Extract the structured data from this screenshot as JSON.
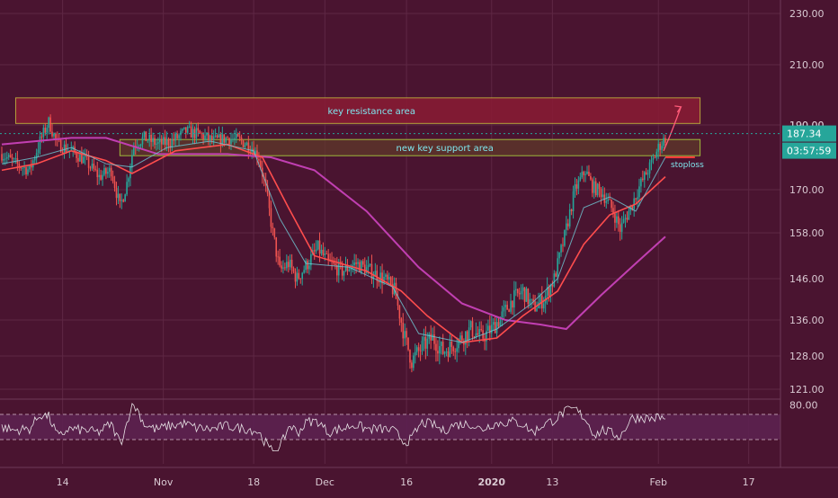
{
  "colors": {
    "background": "#4a1430",
    "grid": "#5e2744",
    "candle_up": "#26a69a",
    "candle_down": "#ef5350",
    "ma_fast": "#6fc9d6",
    "ma_mid": "#ff4d4d",
    "ma_slow": "#c13fb2",
    "resistance_fill": "#8a1b34",
    "resistance_stroke": "#b5a03b",
    "support_fill": "#5f3a2a",
    "support_stroke": "#9fb93b",
    "zone_text": "#7fe6ee",
    "price_label": "#26a69a",
    "stoploss": "#ff3b3b",
    "rsi_fill": "#5c2150",
    "axis_text": "#d9c9d2"
  },
  "chart_data": [
    {
      "type": "candlestick",
      "title": "",
      "ylim": [
        120,
        232
      ],
      "y_ticks": [
        "230.00",
        "210.00",
        "190.00",
        "170.00",
        "158.00",
        "146.00",
        "136.00",
        "128.00",
        "121.00"
      ],
      "y_tick_values": [
        230,
        210,
        190,
        170,
        158,
        146,
        136,
        128,
        121
      ],
      "x_ticks": [
        "14",
        "Nov",
        "18",
        "Dec",
        "16",
        "2020",
        "13",
        "Feb",
        "17"
      ],
      "x_tick_index": [
        35,
        93,
        145,
        186,
        233,
        282,
        317,
        378,
        430
      ],
      "x_count": 440,
      "price_path": [
        [
          0,
          181
        ],
        [
          8,
          178
        ],
        [
          16,
          176
        ],
        [
          22,
          185
        ],
        [
          27,
          191
        ],
        [
          32,
          184
        ],
        [
          40,
          182
        ],
        [
          48,
          179
        ],
        [
          56,
          174
        ],
        [
          63,
          176
        ],
        [
          68,
          165
        ],
        [
          72,
          172
        ],
        [
          76,
          184
        ],
        [
          82,
          186
        ],
        [
          90,
          184
        ],
        [
          98,
          185
        ],
        [
          106,
          188
        ],
        [
          114,
          187
        ],
        [
          122,
          185
        ],
        [
          130,
          186
        ],
        [
          138,
          185
        ],
        [
          144,
          183
        ],
        [
          148,
          180
        ],
        [
          152,
          170
        ],
        [
          156,
          158
        ],
        [
          160,
          148
        ],
        [
          165,
          150
        ],
        [
          170,
          146
        ],
        [
          176,
          150
        ],
        [
          182,
          154
        ],
        [
          188,
          150
        ],
        [
          196,
          148
        ],
        [
          204,
          150
        ],
        [
          212,
          148
        ],
        [
          220,
          146
        ],
        [
          226,
          143
        ],
        [
          232,
          132
        ],
        [
          236,
          127
        ],
        [
          242,
          130
        ],
        [
          248,
          132
        ],
        [
          254,
          129
        ],
        [
          262,
          131
        ],
        [
          270,
          134
        ],
        [
          276,
          132
        ],
        [
          282,
          134
        ],
        [
          288,
          137
        ],
        [
          294,
          141
        ],
        [
          300,
          143
        ],
        [
          306,
          139
        ],
        [
          312,
          141
        ],
        [
          318,
          146
        ],
        [
          324,
          157
        ],
        [
          330,
          170
        ],
        [
          336,
          176
        ],
        [
          340,
          171
        ],
        [
          346,
          169
        ],
        [
          352,
          164
        ],
        [
          356,
          159
        ],
        [
          362,
          165
        ],
        [
          368,
          172
        ],
        [
          374,
          178
        ],
        [
          378,
          183
        ],
        [
          382,
          186
        ]
      ],
      "moving_averages": {
        "fast": [
          [
            0,
            178
          ],
          [
            20,
            180
          ],
          [
            40,
            183
          ],
          [
            60,
            178
          ],
          [
            75,
            177
          ],
          [
            95,
            183
          ],
          [
            120,
            185
          ],
          [
            145,
            182
          ],
          [
            160,
            162
          ],
          [
            175,
            150
          ],
          [
            200,
            149
          ],
          [
            225,
            144
          ],
          [
            240,
            133
          ],
          [
            265,
            131
          ],
          [
            285,
            134
          ],
          [
            305,
            140
          ],
          [
            320,
            146
          ],
          [
            335,
            165
          ],
          [
            350,
            168
          ],
          [
            365,
            164
          ],
          [
            382,
            180
          ]
        ],
        "mid": [
          [
            0,
            176
          ],
          [
            20,
            178
          ],
          [
            40,
            182
          ],
          [
            60,
            179
          ],
          [
            75,
            175
          ],
          [
            100,
            182
          ],
          [
            130,
            184
          ],
          [
            150,
            180
          ],
          [
            165,
            165
          ],
          [
            180,
            152
          ],
          [
            210,
            148
          ],
          [
            230,
            143
          ],
          [
            245,
            137
          ],
          [
            265,
            131
          ],
          [
            285,
            132
          ],
          [
            300,
            137
          ],
          [
            320,
            143
          ],
          [
            335,
            155
          ],
          [
            350,
            163
          ],
          [
            365,
            166
          ],
          [
            382,
            174
          ]
        ],
        "slow": [
          [
            0,
            184
          ],
          [
            40,
            186
          ],
          [
            60,
            186
          ],
          [
            90,
            181
          ],
          [
            130,
            181
          ],
          [
            155,
            180
          ],
          [
            180,
            176
          ],
          [
            210,
            164
          ],
          [
            240,
            149
          ],
          [
            265,
            140
          ],
          [
            290,
            136
          ],
          [
            310,
            135
          ],
          [
            325,
            134
          ],
          [
            345,
            142
          ],
          [
            365,
            150
          ],
          [
            382,
            157
          ]
        ]
      },
      "zones": [
        {
          "label": "key resistance area",
          "low": 190.5,
          "high": 199,
          "start_index": 8,
          "end_index": 402
        },
        {
          "label": "new key support area",
          "low": 180.5,
          "high": 185.5,
          "start_index": 68,
          "end_index": 402
        }
      ],
      "last_price": "187.34",
      "countdown": "03:57:59",
      "hidden_tick": "190.00",
      "annotations": [
        {
          "label": "stoploss",
          "price": 180,
          "start_index": 382,
          "end_index": 399
        }
      ],
      "projection_arrow": {
        "from": [
          381,
          182
        ],
        "to": [
          391,
          196
        ]
      }
    },
    {
      "type": "line",
      "title": "",
      "ylim": [
        0,
        100
      ],
      "y_ticks": [
        "80.00"
      ],
      "upper_band": 70,
      "lower_band": 30
    }
  ]
}
